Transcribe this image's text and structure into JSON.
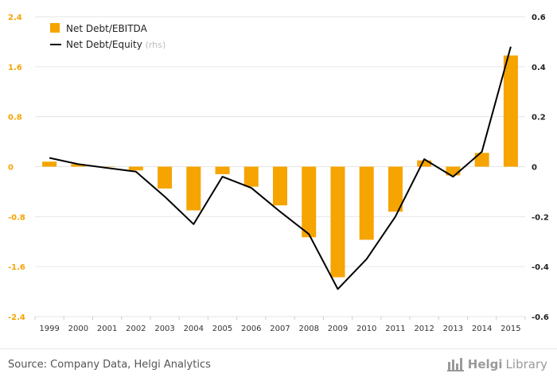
{
  "chart_data": {
    "type": "bar+line",
    "categories": [
      "1999",
      "2000",
      "2001",
      "2002",
      "2003",
      "2004",
      "2005",
      "2006",
      "2007",
      "2008",
      "2009",
      "2010",
      "2011",
      "2012",
      "2013",
      "2014",
      "2015"
    ],
    "series": [
      {
        "name": "Net Debt/EBITDA",
        "type": "bar",
        "axis": "left",
        "color": "#f5a400",
        "values": [
          0.08,
          0.04,
          0.0,
          -0.06,
          -0.35,
          -0.7,
          -0.12,
          -0.32,
          -0.62,
          -1.13,
          -1.77,
          -1.17,
          -0.72,
          0.1,
          -0.14,
          0.22,
          1.78
        ]
      },
      {
        "name": "Net Debt/Equity",
        "type": "line",
        "axis": "right",
        "color": "#000000",
        "values": [
          0.035,
          0.01,
          -0.005,
          -0.02,
          -0.12,
          -0.23,
          -0.04,
          -0.085,
          -0.18,
          -0.27,
          -0.49,
          -0.37,
          -0.2,
          0.03,
          -0.04,
          0.06,
          0.48
        ]
      }
    ],
    "y_left": {
      "ticks": [
        "2.4",
        "1.6",
        "0.8",
        "0",
        "-0.8",
        "-1.6",
        "-2.4"
      ],
      "range": [
        -2.4,
        2.4
      ]
    },
    "y_right": {
      "ticks": [
        "0.6",
        "0.4",
        "0.2",
        "0",
        "-0.2",
        "-0.4",
        "-0.6"
      ],
      "range": [
        -0.6,
        0.6
      ]
    },
    "legend": {
      "position": "top-left",
      "note": "(rhs)"
    },
    "grid": true
  },
  "footer": {
    "source": "Source: Company Data, Helgi Analytics",
    "brand_a": "Helgi",
    "brand_b": "Library"
  }
}
